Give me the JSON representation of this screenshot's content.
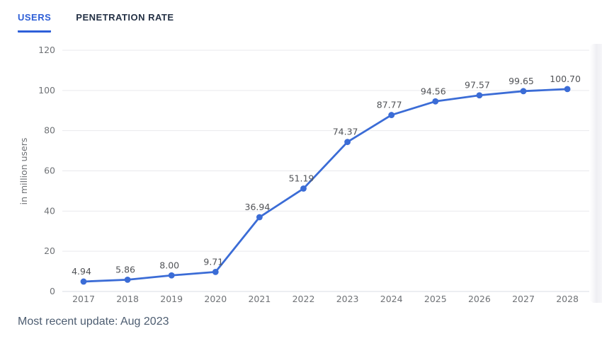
{
  "tabs": [
    {
      "label": "USERS",
      "active": true
    },
    {
      "label": "PENETRATION RATE",
      "active": false
    }
  ],
  "footer": {
    "note": "Most recent update: Aug 2023"
  },
  "colors": {
    "line": "#3b6cd6",
    "point": "#3b6cd6",
    "grid": "#e9e9ed",
    "axis_line": "#d9dce6",
    "tick_text": "#6f7276",
    "label_text": "#515357",
    "ylabel_text": "#6f7276"
  },
  "chart_data": {
    "type": "line",
    "categories": [
      "2017",
      "2018",
      "2019",
      "2020",
      "2021",
      "2022",
      "2023",
      "2024",
      "2025",
      "2026",
      "2027",
      "2028"
    ],
    "values": [
      4.94,
      5.86,
      8.0,
      9.71,
      36.94,
      51.19,
      74.37,
      87.77,
      94.56,
      97.57,
      99.65,
      100.7
    ],
    "title": "",
    "xlabel": "",
    "ylabel": "in million users",
    "ylim": [
      0,
      120
    ],
    "yticks": [
      0,
      20,
      40,
      60,
      80,
      100,
      120
    ],
    "grid": true,
    "legend": "none",
    "point_labels_decimals": 2
  }
}
